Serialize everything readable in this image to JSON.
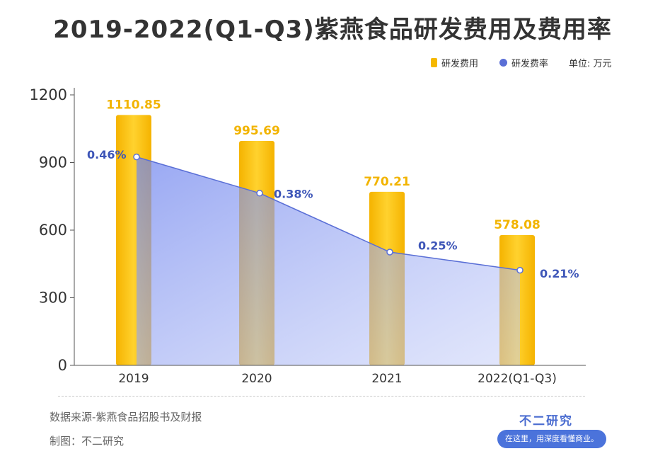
{
  "title": "2019-2022(Q1-Q3)紫燕食品研发费用及费用率",
  "legend": {
    "bar_label": "研发费用",
    "line_label": "研发费率",
    "unit": "单位: 万元"
  },
  "footer": {
    "source": "数据来源-紫燕食品招股书及财报",
    "maker": "制图：不二研究",
    "brand": "不二研究",
    "slogan": "在这里，用深度看懂商业。"
  },
  "colors": {
    "bar": "#f5b800",
    "line": "#5a6fd6",
    "area": "#7b8ff0"
  },
  "chart_data": {
    "type": "bar",
    "title": "2019-2022(Q1-Q3)紫燕食品研发费用及费用率",
    "categories": [
      "2019",
      "2020",
      "2021",
      "2022(Q1-Q3)"
    ],
    "series": [
      {
        "name": "研发费用",
        "type": "bar",
        "values": [
          1110.85,
          995.69,
          770.21,
          578.08
        ],
        "labels": [
          "1110.85",
          "995.69",
          "770.21",
          "578.08"
        ]
      },
      {
        "name": "研发费率",
        "type": "area",
        "values": [
          0.46,
          0.38,
          0.25,
          0.21
        ],
        "labels": [
          "0.46%",
          "0.38%",
          "0.25%",
          "0.21%"
        ]
      }
    ],
    "ylim": [
      0,
      1200
    ],
    "yticks": [
      "1200",
      "900",
      "600",
      "300",
      "0"
    ],
    "grid": false,
    "legend_position": "top-right"
  }
}
